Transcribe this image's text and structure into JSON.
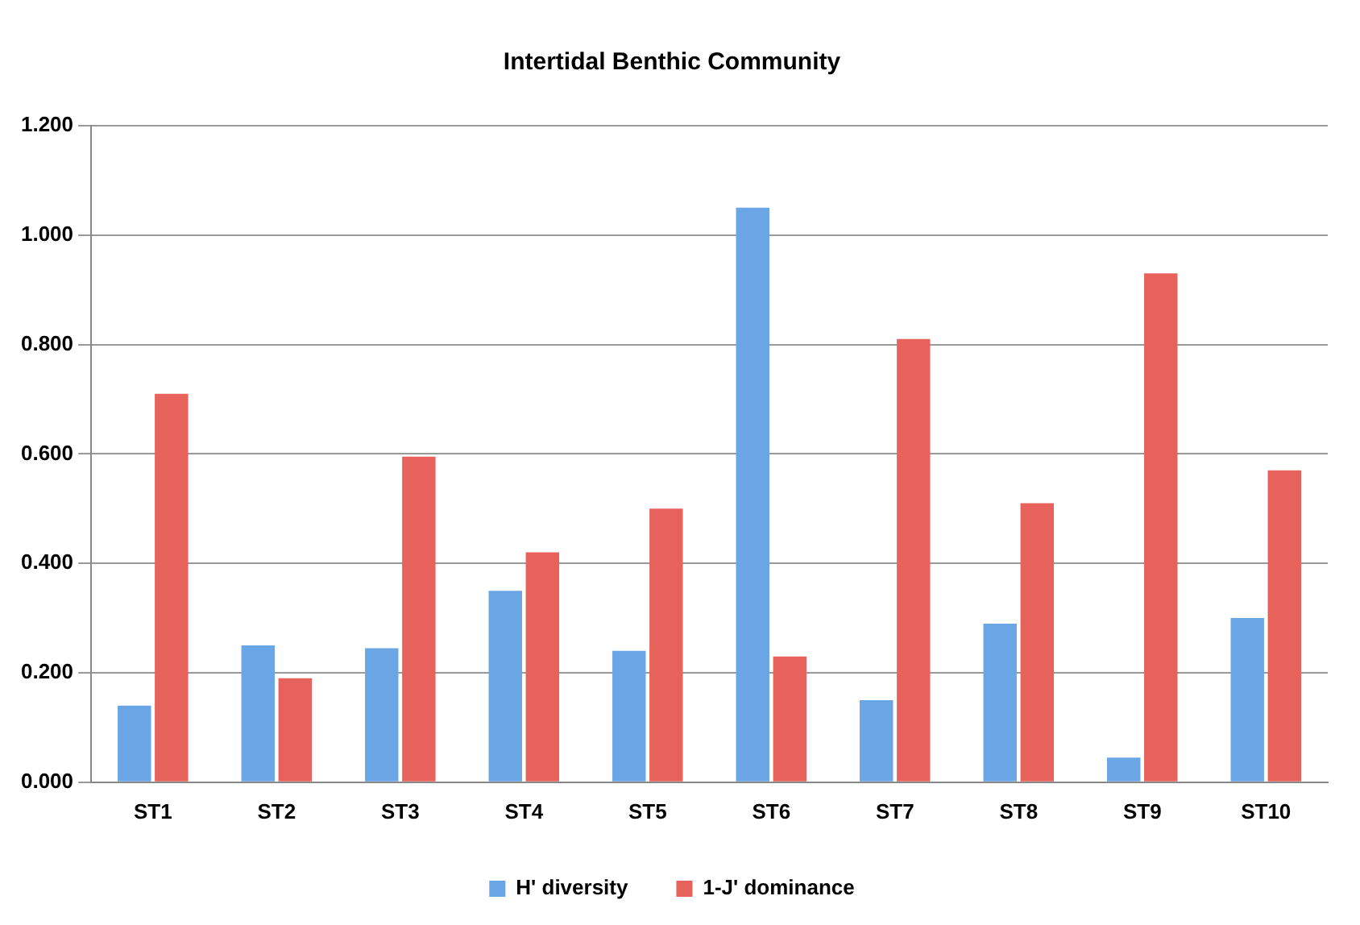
{
  "chart_data": {
    "type": "bar",
    "title": "Intertidal Benthic Community",
    "categories": [
      "ST1",
      "ST2",
      "ST3",
      "ST4",
      "ST5",
      "ST6",
      "ST7",
      "ST8",
      "ST9",
      "ST10"
    ],
    "series": [
      {
        "name": "H' diversity",
        "color": "#6aa6e6",
        "values": [
          0.14,
          0.25,
          0.245,
          0.35,
          0.24,
          1.05,
          0.15,
          0.29,
          0.045,
          0.3
        ]
      },
      {
        "name": "1-J' dominance",
        "color": "#e8625c",
        "values": [
          0.71,
          0.19,
          0.595,
          0.42,
          0.5,
          0.23,
          0.81,
          0.51,
          0.93,
          0.57
        ]
      }
    ],
    "ylim": [
      0,
      1.2
    ],
    "yticks": [
      {
        "value": 0,
        "label": "0.000"
      },
      {
        "value": 0.2,
        "label": "0.200"
      },
      {
        "value": 0.4,
        "label": "0.400"
      },
      {
        "value": 0.6,
        "label": "0.600"
      },
      {
        "value": 0.8,
        "label": "0.800"
      },
      {
        "value": 1,
        "label": "1.000"
      },
      {
        "value": 1.2,
        "label": "1.200"
      }
    ],
    "grid": "y",
    "legend": "bottom"
  }
}
